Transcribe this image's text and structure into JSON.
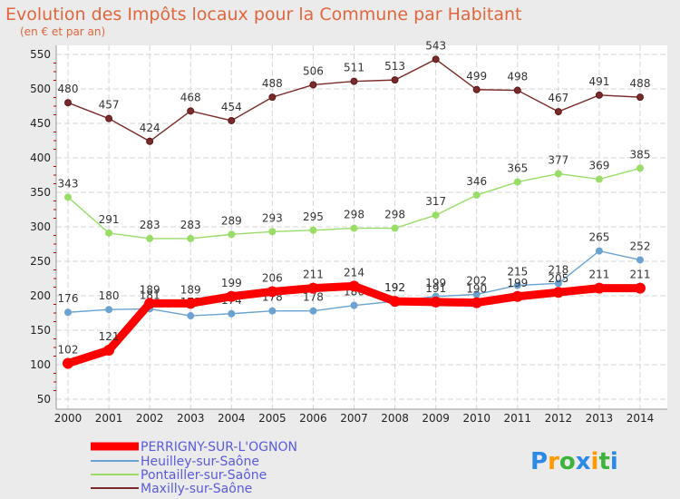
{
  "chart_data": {
    "type": "line",
    "title": "Evolution des Impôts locaux pour la Commune par Habitant",
    "subtitle": "(en € et par an)",
    "xlabel": "",
    "ylabel": "",
    "x": [
      "2000",
      "2001",
      "2002",
      "2003",
      "2004",
      "2005",
      "2006",
      "2007",
      "2008",
      "2009",
      "2010",
      "2011",
      "2012",
      "2013",
      "2014"
    ],
    "ylim": [
      50,
      550
    ],
    "yticks": [
      50,
      100,
      150,
      200,
      250,
      300,
      350,
      400,
      450,
      500,
      550
    ],
    "grid": true,
    "legend_placement": "bottom-left",
    "series": [
      {
        "name": "PERRIGNY-SUR-L'OGNON",
        "color": "#ff0000",
        "emphasis": true,
        "values": [
          102,
          121,
          189,
          189,
          199,
          206,
          211,
          214,
          192,
          191,
          190,
          199,
          205,
          211,
          211
        ]
      },
      {
        "name": "Heuilley-sur-Saône",
        "color": "#6aa2d2",
        "values": [
          176,
          180,
          181,
          171,
          174,
          178,
          178,
          186,
          192,
          199,
          202,
          215,
          218,
          265,
          252
        ]
      },
      {
        "name": "Pontailler-sur-Saône",
        "color": "#99dd66",
        "values": [
          343,
          291,
          283,
          283,
          289,
          293,
          295,
          298,
          298,
          317,
          346,
          365,
          377,
          369,
          385
        ]
      },
      {
        "name": "Maxilly-sur-Saône",
        "color": "#7a2a2a",
        "values": [
          480,
          457,
          424,
          468,
          454,
          488,
          506,
          511,
          513,
          543,
          499,
          498,
          467,
          491,
          488
        ]
      }
    ]
  },
  "brand": {
    "text": "Proxiti",
    "letters": [
      "P",
      "r",
      "o",
      "x",
      "i",
      "t",
      "i"
    ],
    "colors": [
      "#2b8ae6",
      "#ff9900",
      "#3cb43c",
      "#2b8ae6",
      "#ff9900",
      "#3cb43c",
      "#2b8ae6"
    ]
  }
}
